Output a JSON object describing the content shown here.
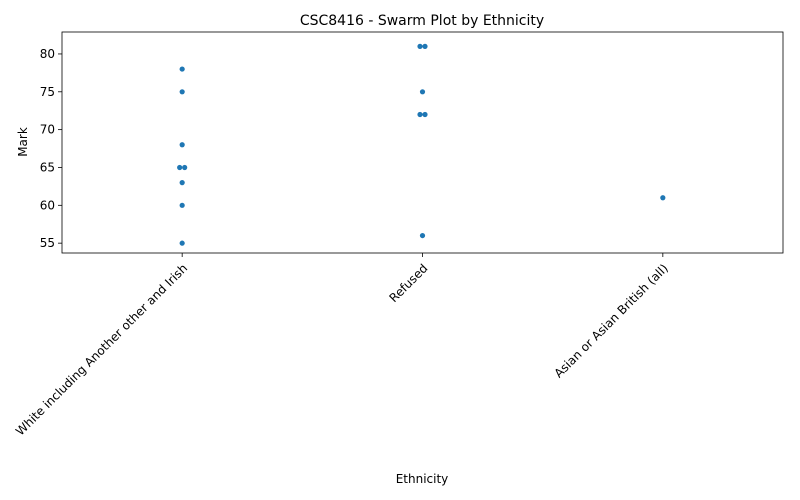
{
  "chart_data": {
    "type": "swarm",
    "title": "CSC8416 - Swarm Plot by Ethnicity",
    "x_label": "Ethnicity",
    "y_label": "Mark",
    "categories": [
      "White including Another other and Irish",
      "Refused",
      "Asian or Asian British (all)"
    ],
    "values": [
      [
        78,
        75,
        68,
        65,
        65,
        63,
        60,
        55
      ],
      [
        81,
        81,
        75,
        72,
        72,
        56
      ],
      [
        61
      ]
    ],
    "color": "#1f77b4",
    "ylim": [
      53.7,
      82.9
    ],
    "yticks": [
      55,
      60,
      65,
      70,
      75,
      80
    ]
  }
}
